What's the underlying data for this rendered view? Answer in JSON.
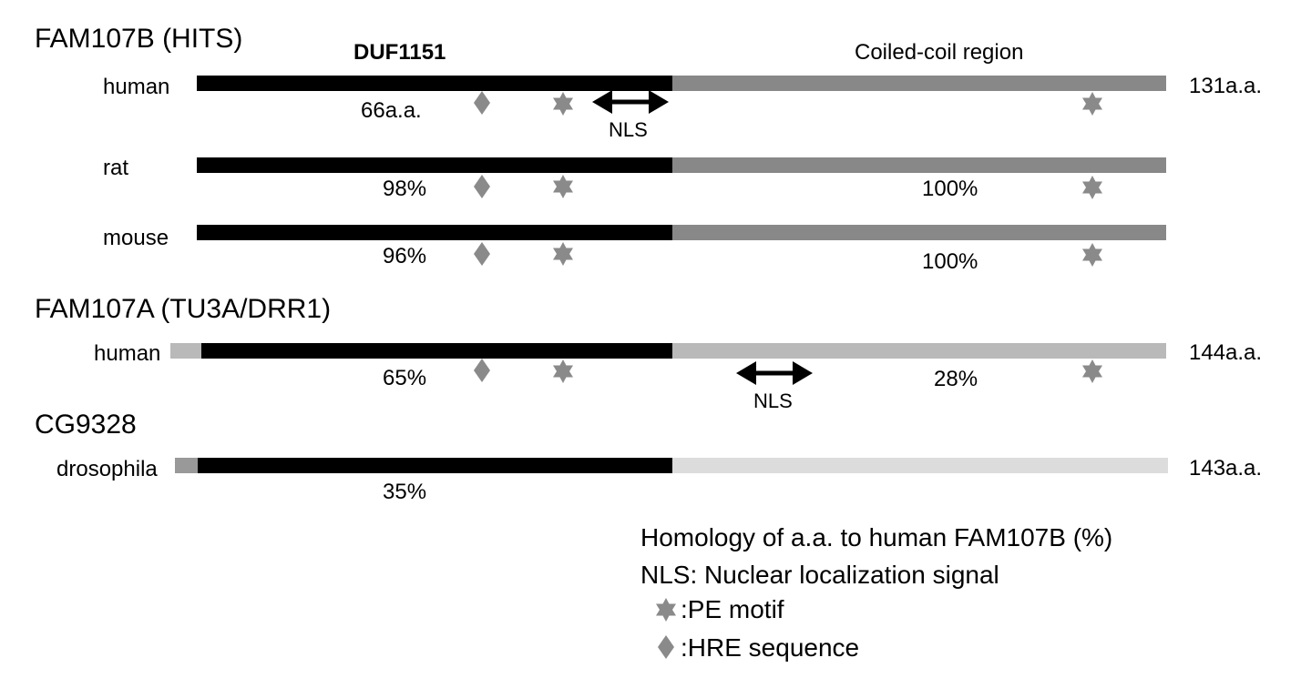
{
  "colors": {
    "duf_black": "#000000",
    "coil_dark": "#888888",
    "coil_light": "#b9b9b9",
    "coil_pale": "#dcdcdc",
    "symbol_gray": "#8a8a8a"
  },
  "headers": {
    "duf_label": "DUF1151",
    "coil_label": "Coiled-coil region"
  },
  "groups": [
    {
      "title": "FAM107B (HITS)",
      "rows": [
        {
          "species": "human",
          "length": "131a.a.",
          "duf_value": "66a.a.",
          "coil_value": "",
          "nls": "NLS"
        },
        {
          "species": "rat",
          "length": "",
          "duf_value": "98%",
          "coil_value": "100%"
        },
        {
          "species": "mouse",
          "length": "",
          "duf_value": "96%",
          "coil_value": "100%"
        }
      ]
    },
    {
      "title": "FAM107A (TU3A/DRR1)",
      "rows": [
        {
          "species": "human",
          "length": "144a.a.",
          "duf_value": "65%",
          "coil_value": "28%",
          "nls": "NLS"
        }
      ]
    },
    {
      "title": "CG9328",
      "rows": [
        {
          "species": "drosophila",
          "length": "143a.a.",
          "duf_value": "35%",
          "coil_value": ""
        }
      ]
    }
  ],
  "legend": {
    "homology": "Homology of a.a. to human FAM107B (%)",
    "nls": "NLS: Nuclear localization signal",
    "pe_motif": ":PE motif",
    "hre": ":HRE sequence",
    "pe_icon": "star-icon",
    "hre_icon": "diamond-icon"
  }
}
